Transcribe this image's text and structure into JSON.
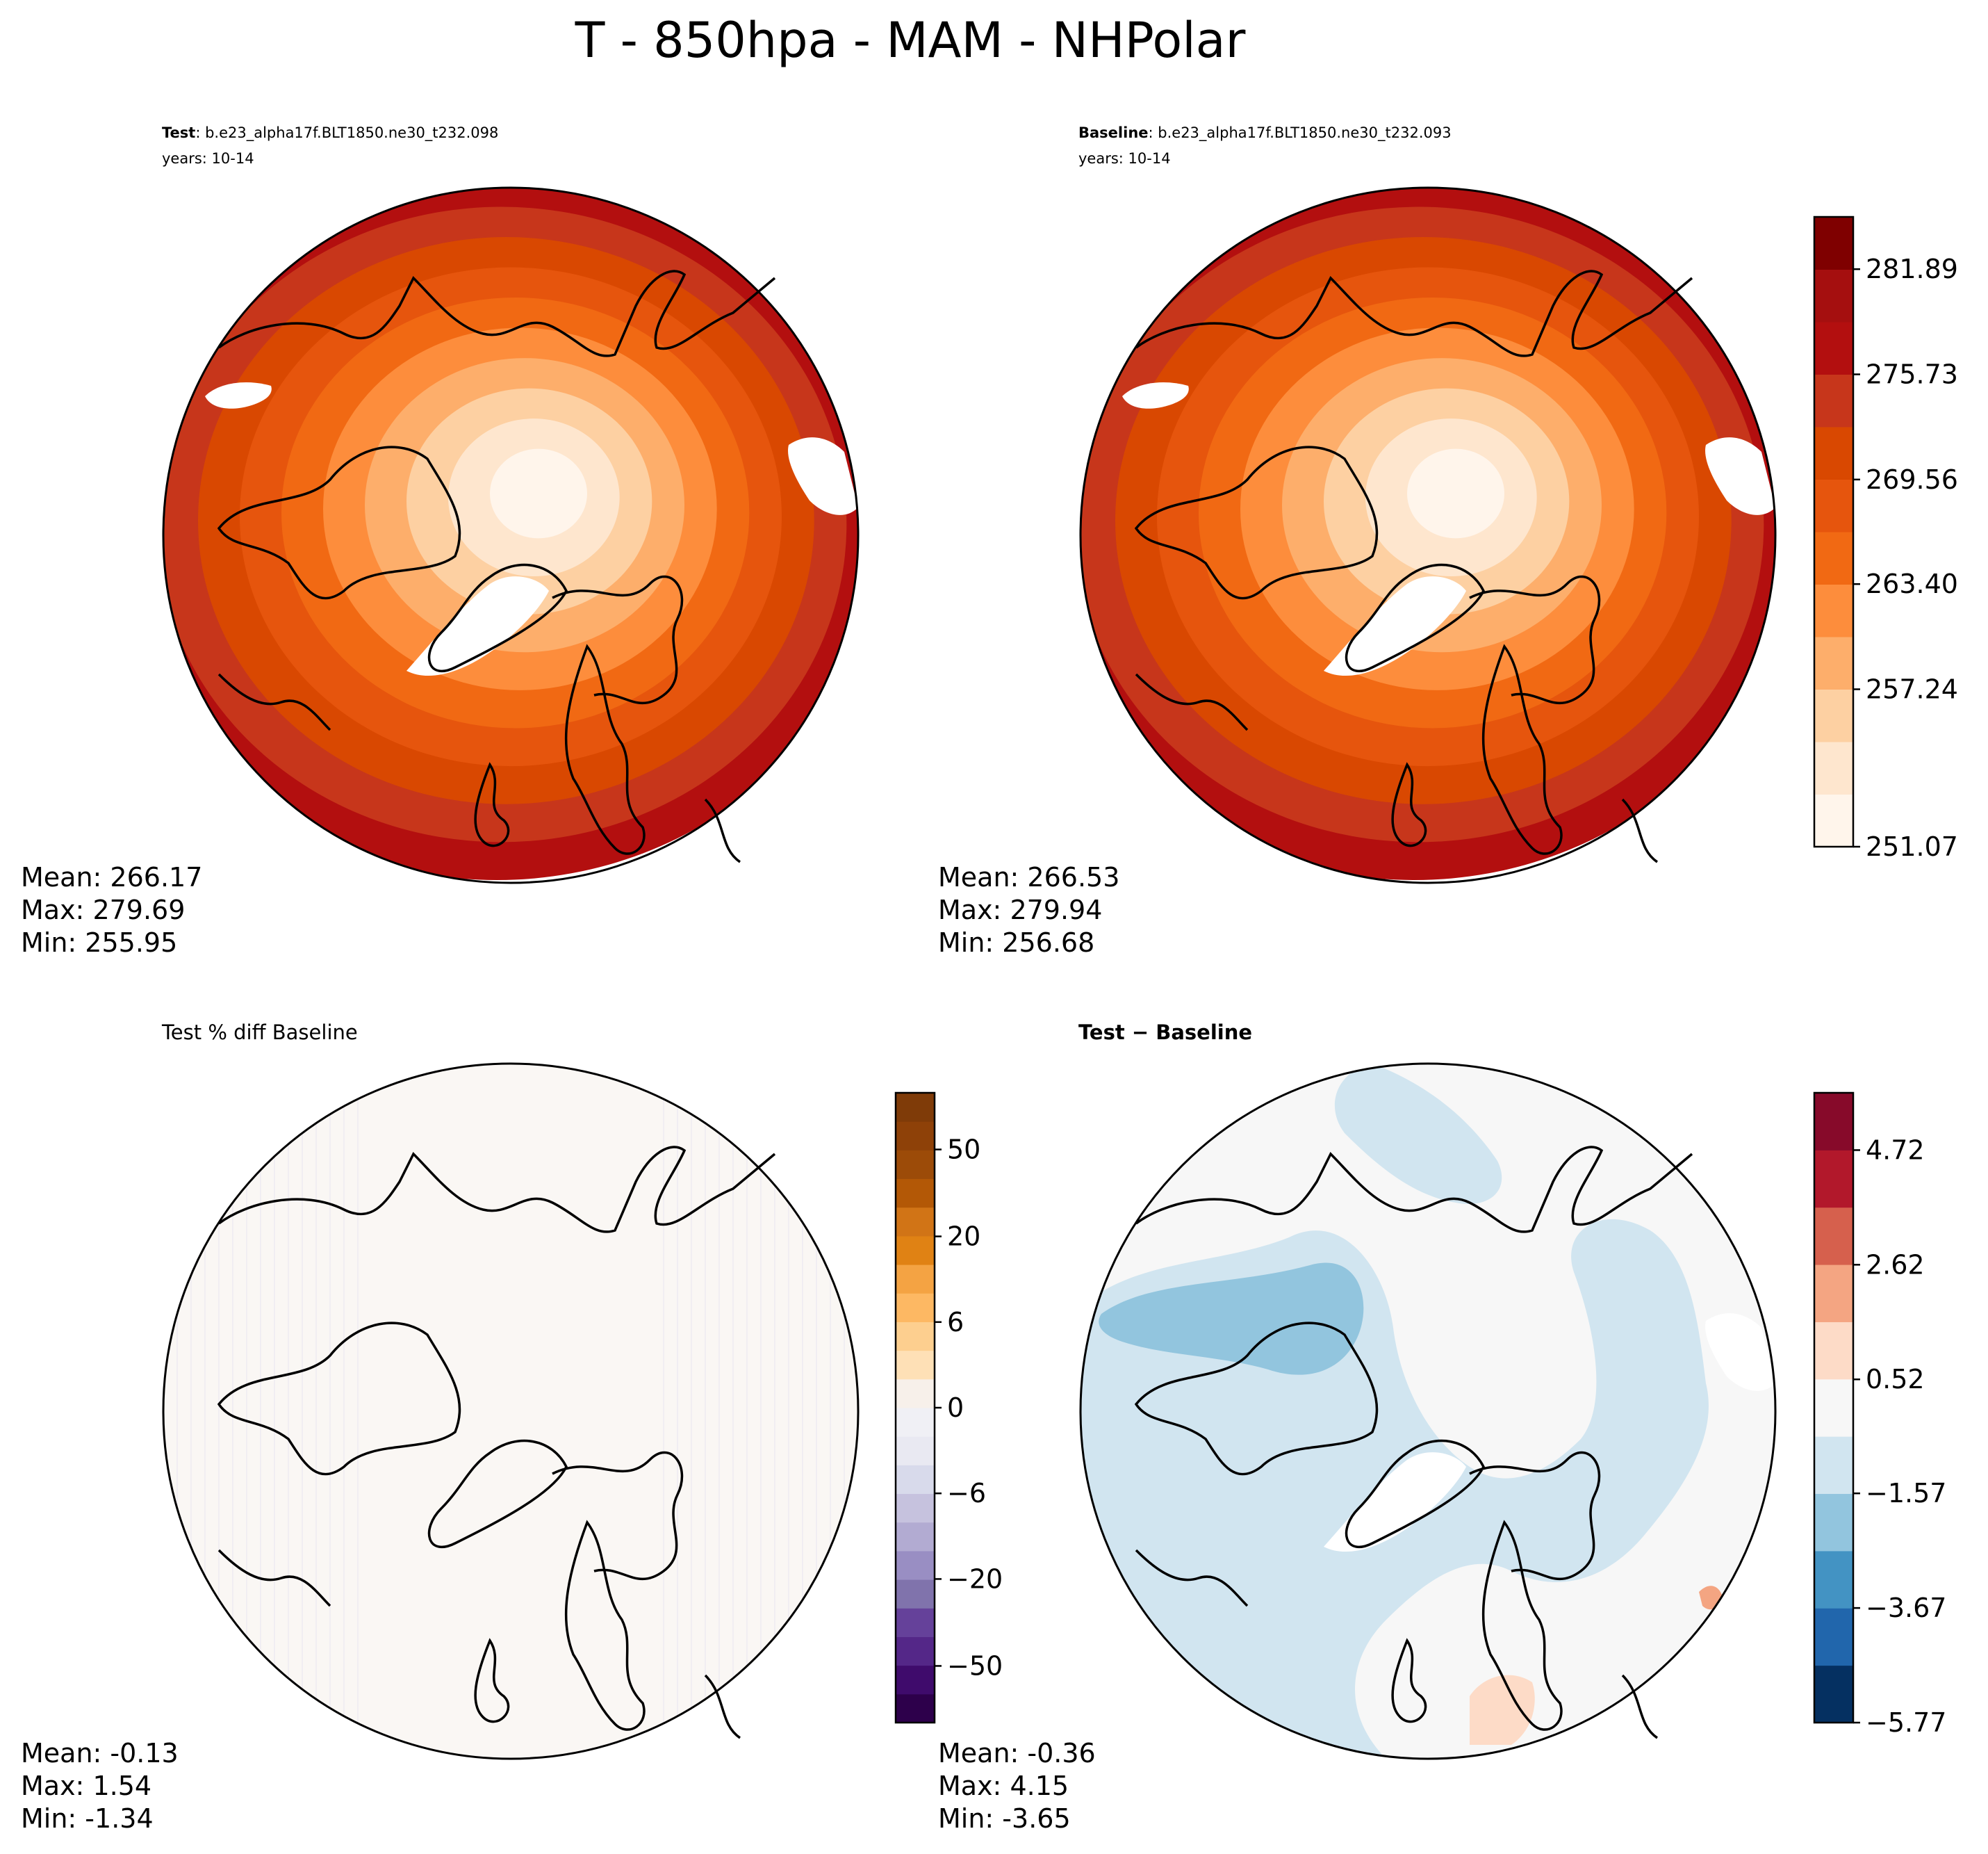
{
  "figure": {
    "title": "T - 850hpa - MAM - NHPolar"
  },
  "chart_data": [
    {
      "type": "heatmap",
      "name": "test",
      "label_bold": "Test",
      "label_rest": ": b.e23_alpha17f.BLT1850.ne30_t232.098",
      "years": "years: 10-14",
      "projection": "north-polar-stereographic",
      "stats": {
        "mean": "Mean: 266.17",
        "max": "Max: 279.69",
        "min": "Min: 255.95"
      },
      "field": {
        "pole_value": 252.5,
        "edge_value": 279.5
      }
    },
    {
      "type": "heatmap",
      "name": "baseline",
      "label_bold": "Baseline",
      "label_rest": ": b.e23_alpha17f.BLT1850.ne30_t232.093",
      "years": "years: 10-14",
      "projection": "north-polar-stereographic",
      "stats": {
        "mean": "Mean: 266.53",
        "max": "Max: 279.94",
        "min": "Min: 256.68"
      },
      "field": {
        "pole_value": 253.0,
        "edge_value": 280.0
      },
      "colorbar": {
        "ticks": [
          "281.89",
          "275.73",
          "269.56",
          "263.40",
          "257.24",
          "251.07"
        ],
        "levels": 12,
        "colors": [
          "#fff5eb",
          "#fee6ce",
          "#fdd0a2",
          "#fdae6b",
          "#fd8d3c",
          "#f16913",
          "#e6550d",
          "#d94801",
          "#c7361b",
          "#b30f0f",
          "#a50f0f",
          "#7f0000"
        ]
      }
    },
    {
      "type": "heatmap",
      "name": "pct-diff",
      "label_bold": "",
      "label_rest": "Test % diff Baseline",
      "years": "",
      "projection": "north-polar-stereographic",
      "stats": {
        "mean": "Mean: -0.13",
        "max": "Max:  1.54",
        "min": "Min: -1.34"
      },
      "colorbar": {
        "ticks": [
          "50",
          "20",
          "6",
          "0",
          "−6",
          "−20",
          "−50"
        ],
        "levels": 22,
        "colors": [
          "#2d004b",
          "#3f0b6c",
          "#542788",
          "#65419a",
          "#8073ac",
          "#998ec3",
          "#b2abd2",
          "#c6c2de",
          "#d8daeb",
          "#e9e9f2",
          "#f0f0f5",
          "#f7f0ea",
          "#fee0b6",
          "#fdcf8f",
          "#fdb863",
          "#f4a343",
          "#e08214",
          "#d17416",
          "#b35806",
          "#9c4b08",
          "#8e4108",
          "#7f3b08"
        ]
      }
    },
    {
      "type": "heatmap",
      "name": "abs-diff",
      "label_bold": "Test − Baseline",
      "label_rest": "",
      "years": "",
      "projection": "north-polar-stereographic",
      "stats": {
        "mean": "Mean: -0.36",
        "max": "Max:  4.15",
        "min": "Min: -3.65"
      },
      "colorbar": {
        "ticks": [
          "4.72",
          "2.62",
          "0.52",
          "−1.57",
          "−3.67",
          "−5.77"
        ],
        "levels": 11,
        "colors": [
          "#053061",
          "#2166ac",
          "#4393c3",
          "#92c5de",
          "#d1e5f0",
          "#f7f7f7",
          "#fddbc7",
          "#f4a582",
          "#d6604d",
          "#b2182b",
          "#870a2a"
        ]
      }
    }
  ]
}
